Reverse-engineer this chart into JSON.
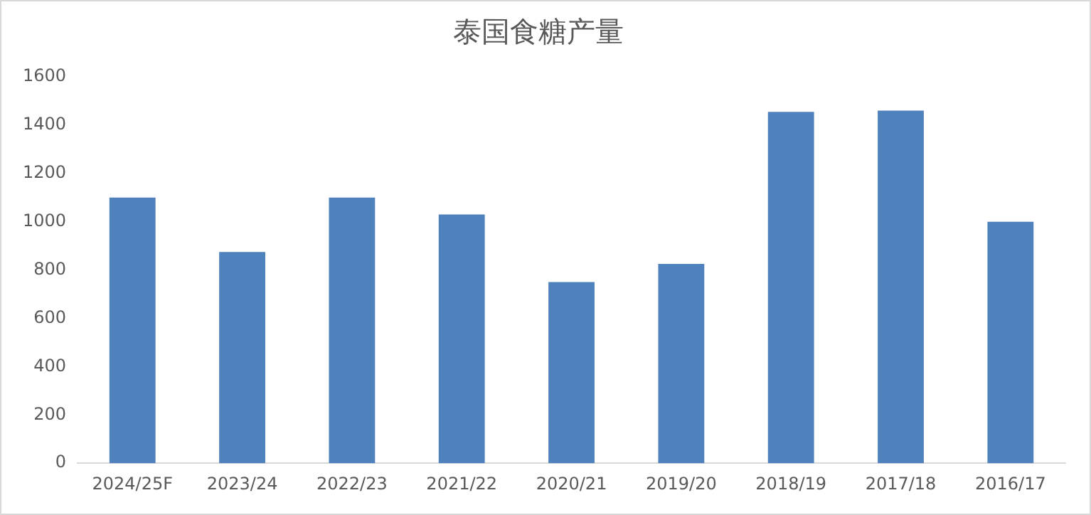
{
  "chart_data": {
    "type": "bar",
    "title": "泰国食糖产量",
    "categories": [
      "2024/25F",
      "2023/24",
      "2022/23",
      "2021/22",
      "2020/21",
      "2019/20",
      "2018/19",
      "2017/18",
      "2016/17"
    ],
    "values": [
      1100,
      875,
      1100,
      1030,
      750,
      825,
      1455,
      1460,
      1000
    ],
    "color": "#4f81bd",
    "ylim": [
      0,
      1600
    ],
    "yticks": [
      0,
      200,
      400,
      600,
      800,
      1000,
      1200,
      1400,
      1600
    ],
    "grid": false,
    "legend": false
  }
}
